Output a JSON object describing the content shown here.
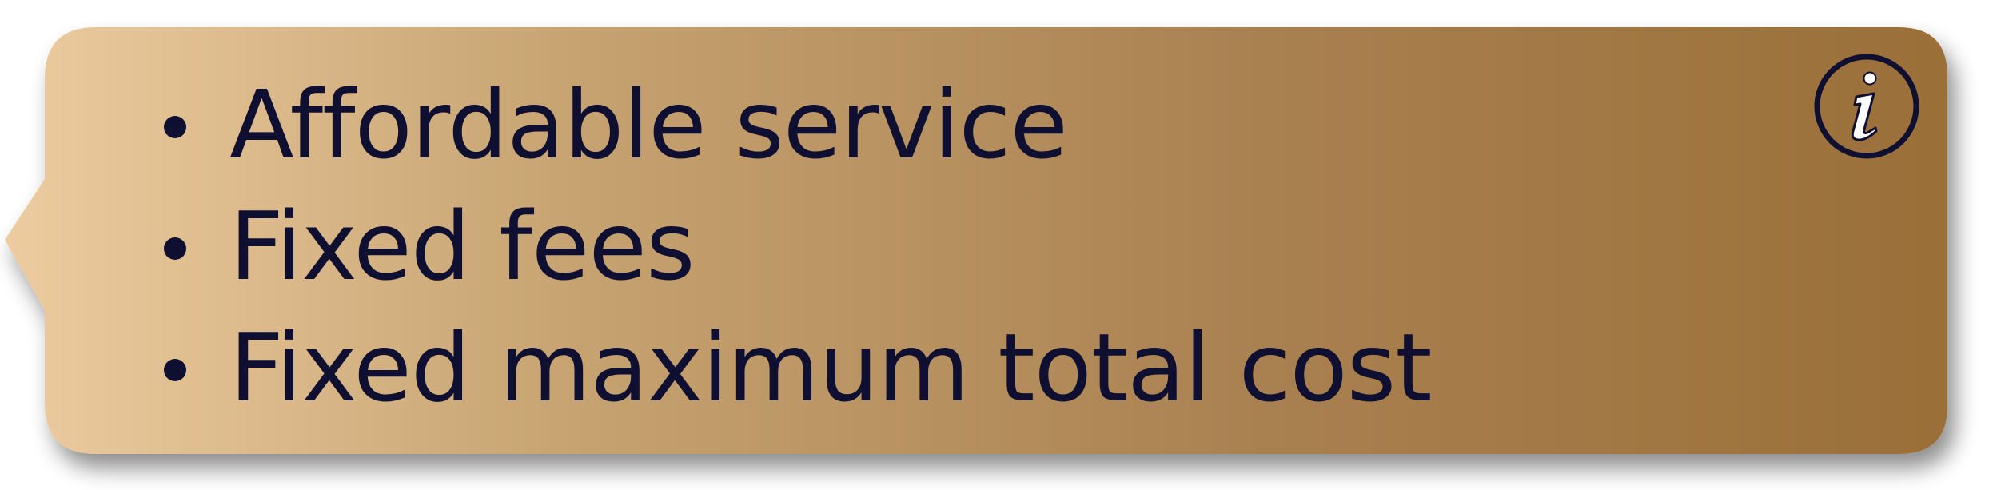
{
  "callout": {
    "gradient_start": "#e9c99d",
    "gradient_end": "#9a7038",
    "text_color": "#0e0f31",
    "icon": "info-icon",
    "items": [
      {
        "label": "Affordable service"
      },
      {
        "label": "Fixed fees"
      },
      {
        "label": "Fixed maximum total cost"
      }
    ]
  }
}
